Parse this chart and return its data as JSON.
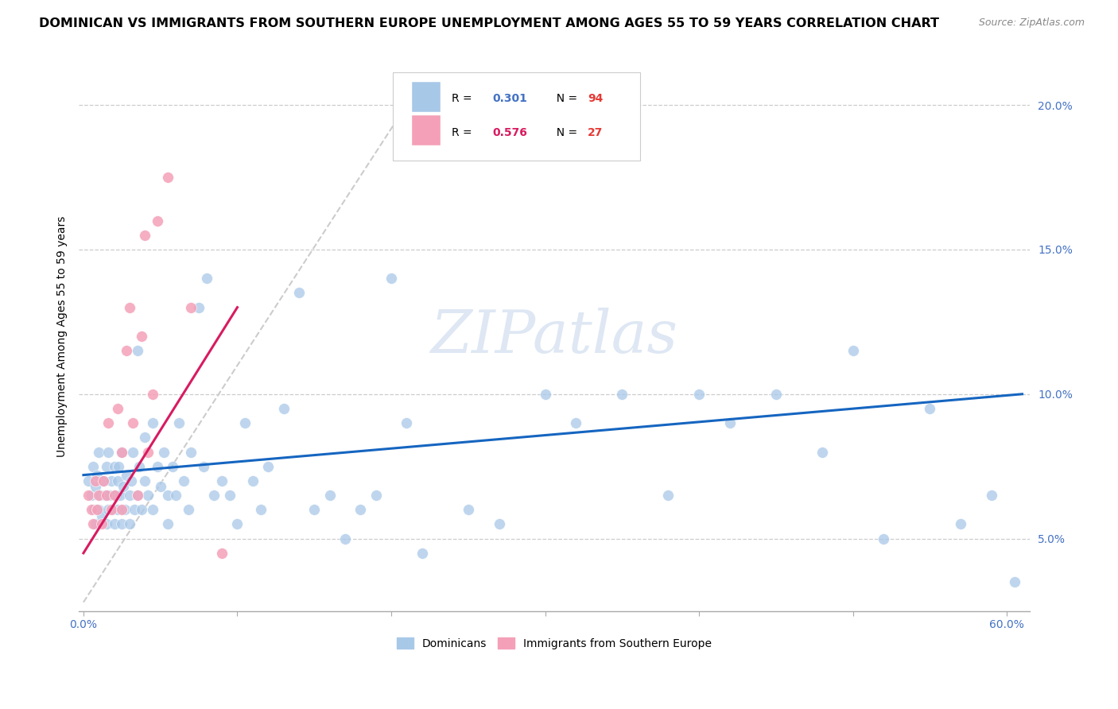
{
  "title": "DOMINICAN VS IMMIGRANTS FROM SOUTHERN EUROPE UNEMPLOYMENT AMONG AGES 55 TO 59 YEARS CORRELATION CHART",
  "source": "Source: ZipAtlas.com",
  "ylabel": "Unemployment Among Ages 55 to 59 years",
  "xlim": [
    -0.003,
    0.615
  ],
  "ylim": [
    0.025,
    0.215
  ],
  "blue_color": "#a8c8e8",
  "pink_color": "#f4a0b8",
  "trend_blue": "#1565c0",
  "trend_pink": "#d81b60",
  "diag_color": "#cccccc",
  "r_blue": 0.301,
  "n_blue": 94,
  "r_pink": 0.576,
  "n_pink": 27,
  "background_color": "#ffffff",
  "grid_color": "#cccccc",
  "watermark": "ZIPatlas",
  "title_fontsize": 11.5,
  "axis_label_fontsize": 10,
  "tick_fontsize": 10,
  "source_fontsize": 9,
  "ytick_vals": [
    0.05,
    0.1,
    0.15,
    0.2
  ],
  "ytick_labels": [
    "5.0%",
    "10.0%",
    "15.0%",
    "20.0%"
  ],
  "xtick_vals": [
    0.0,
    0.1,
    0.2,
    0.3,
    0.4,
    0.5,
    0.6
  ],
  "xtick_show": [
    "0.0%",
    "",
    "",
    "",
    "",
    "",
    "60.0%"
  ],
  "blue_x": [
    0.003,
    0.005,
    0.006,
    0.007,
    0.008,
    0.008,
    0.009,
    0.01,
    0.01,
    0.011,
    0.012,
    0.013,
    0.014,
    0.015,
    0.015,
    0.016,
    0.016,
    0.017,
    0.018,
    0.019,
    0.02,
    0.02,
    0.021,
    0.022,
    0.022,
    0.023,
    0.024,
    0.025,
    0.025,
    0.026,
    0.027,
    0.028,
    0.03,
    0.03,
    0.031,
    0.032,
    0.033,
    0.035,
    0.035,
    0.036,
    0.038,
    0.04,
    0.04,
    0.042,
    0.045,
    0.045,
    0.048,
    0.05,
    0.052,
    0.055,
    0.055,
    0.058,
    0.06,
    0.062,
    0.065,
    0.068,
    0.07,
    0.075,
    0.078,
    0.08,
    0.085,
    0.09,
    0.095,
    0.1,
    0.105,
    0.11,
    0.115,
    0.12,
    0.13,
    0.14,
    0.15,
    0.16,
    0.17,
    0.18,
    0.19,
    0.2,
    0.21,
    0.22,
    0.25,
    0.27,
    0.3,
    0.32,
    0.35,
    0.38,
    0.4,
    0.42,
    0.45,
    0.48,
    0.5,
    0.52,
    0.55,
    0.57,
    0.59,
    0.605
  ],
  "blue_y": [
    0.07,
    0.065,
    0.075,
    0.06,
    0.068,
    0.055,
    0.072,
    0.06,
    0.08,
    0.065,
    0.058,
    0.07,
    0.065,
    0.075,
    0.055,
    0.08,
    0.06,
    0.065,
    0.07,
    0.06,
    0.055,
    0.075,
    0.065,
    0.07,
    0.06,
    0.075,
    0.065,
    0.08,
    0.055,
    0.068,
    0.06,
    0.072,
    0.065,
    0.055,
    0.07,
    0.08,
    0.06,
    0.065,
    0.115,
    0.075,
    0.06,
    0.07,
    0.085,
    0.065,
    0.09,
    0.06,
    0.075,
    0.068,
    0.08,
    0.065,
    0.055,
    0.075,
    0.065,
    0.09,
    0.07,
    0.06,
    0.08,
    0.13,
    0.075,
    0.14,
    0.065,
    0.07,
    0.065,
    0.055,
    0.09,
    0.07,
    0.06,
    0.075,
    0.095,
    0.135,
    0.06,
    0.065,
    0.05,
    0.06,
    0.065,
    0.14,
    0.09,
    0.045,
    0.06,
    0.055,
    0.1,
    0.09,
    0.1,
    0.065,
    0.1,
    0.09,
    0.1,
    0.08,
    0.115,
    0.05,
    0.095,
    0.055,
    0.065,
    0.035
  ],
  "pink_x": [
    0.003,
    0.005,
    0.006,
    0.008,
    0.009,
    0.01,
    0.012,
    0.013,
    0.015,
    0.016,
    0.018,
    0.02,
    0.022,
    0.025,
    0.025,
    0.028,
    0.03,
    0.032,
    0.035,
    0.038,
    0.04,
    0.042,
    0.045,
    0.048,
    0.055,
    0.07,
    0.09
  ],
  "pink_y": [
    0.065,
    0.06,
    0.055,
    0.07,
    0.06,
    0.065,
    0.055,
    0.07,
    0.065,
    0.09,
    0.06,
    0.065,
    0.095,
    0.06,
    0.08,
    0.115,
    0.13,
    0.09,
    0.065,
    0.12,
    0.155,
    0.08,
    0.1,
    0.16,
    0.175,
    0.13,
    0.045
  ]
}
